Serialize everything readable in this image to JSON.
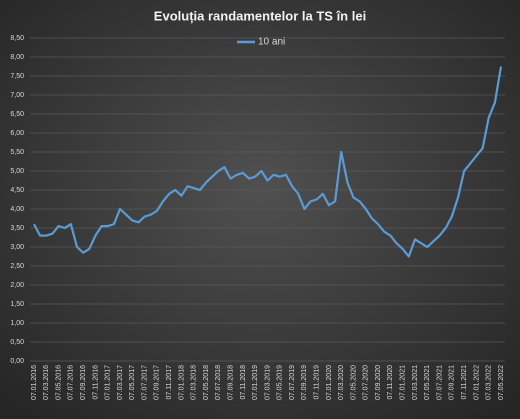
{
  "chart_data": {
    "type": "line",
    "title": "Evoluția randamentelor la TS în lei",
    "categories": [
      "07.01.2016",
      null,
      "07.03.2016",
      null,
      "07.05.2016",
      null,
      "07.07.2016",
      null,
      "07.09.2016",
      null,
      "07.11.2016",
      null,
      "07.01.2017",
      null,
      "07.03.2017",
      null,
      "07.05.2017",
      null,
      "07.07.2017",
      null,
      "07.09.2017",
      null,
      "07.11.2017",
      null,
      "07.01.2018",
      null,
      "07.03.2018",
      null,
      "07.05.2018",
      null,
      "07.07.2018",
      null,
      "07.09.2018",
      null,
      "07.11.2018",
      null,
      "07.01.2019",
      null,
      "07.03.2019",
      null,
      "07.05.2019",
      null,
      "07.07.2019",
      null,
      "07.09.2019",
      null,
      "07.11.2019",
      null,
      "07.01.2020",
      null,
      "07.03.2020",
      null,
      "07.05.2020",
      null,
      "07.07.2020",
      null,
      "07.09.2020",
      null,
      "07.11.2020",
      null,
      "07.01.2021",
      null,
      "07.03.2021",
      null,
      "07.05.2021",
      null,
      "07.07.2021",
      null,
      "07.09.2021",
      null,
      "07.11.2021",
      null,
      "07.01.2022",
      null,
      "07.03.2022",
      null,
      "07.05.2022"
    ],
    "series": [
      {
        "name": "10 ani",
        "color": "#5b9bd5",
        "values": [
          3.6,
          3.3,
          3.3,
          3.35,
          3.55,
          3.5,
          3.6,
          3.0,
          2.85,
          2.95,
          3.3,
          3.55,
          3.55,
          3.6,
          4.0,
          3.85,
          3.7,
          3.65,
          3.8,
          3.85,
          3.95,
          4.2,
          4.4,
          4.5,
          4.35,
          4.6,
          4.55,
          4.5,
          4.7,
          4.85,
          5.0,
          5.1,
          4.8,
          4.9,
          4.95,
          4.8,
          4.85,
          5.0,
          4.75,
          4.9,
          4.85,
          4.9,
          4.6,
          4.4,
          4.0,
          4.2,
          4.25,
          4.4,
          4.1,
          4.2,
          5.5,
          4.7,
          4.3,
          4.2,
          4.0,
          3.75,
          3.6,
          3.4,
          3.3,
          3.1,
          2.95,
          2.75,
          3.2,
          3.1,
          3.0,
          3.15,
          3.3,
          3.5,
          3.8,
          4.3,
          5.0,
          5.2,
          5.4,
          5.6,
          6.4,
          6.8,
          7.75
        ]
      }
    ],
    "ylim": [
      0,
      8.5
    ],
    "yticks": [
      {
        "value": 0,
        "label": "0,00"
      },
      {
        "value": 0.5,
        "label": "0,50"
      },
      {
        "value": 1,
        "label": "1,00"
      },
      {
        "value": 1.5,
        "label": "1,50"
      },
      {
        "value": 2,
        "label": "2,00"
      },
      {
        "value": 2.5,
        "label": "2,50"
      },
      {
        "value": 3,
        "label": "3,00"
      },
      {
        "value": 3.5,
        "label": "3,50"
      },
      {
        "value": 4,
        "label": "4,00"
      },
      {
        "value": 4.5,
        "label": "4,50"
      },
      {
        "value": 5,
        "label": "5,00"
      },
      {
        "value": 5.5,
        "label": "5,50"
      },
      {
        "value": 6,
        "label": "6,00"
      },
      {
        "value": 6.5,
        "label": "6,50"
      },
      {
        "value": 7,
        "label": "7,00"
      },
      {
        "value": 7.5,
        "label": "7,50"
      },
      {
        "value": 8,
        "label": "8,00"
      },
      {
        "value": 8.5,
        "label": "8,50"
      }
    ],
    "grid": true,
    "legend": "top"
  }
}
